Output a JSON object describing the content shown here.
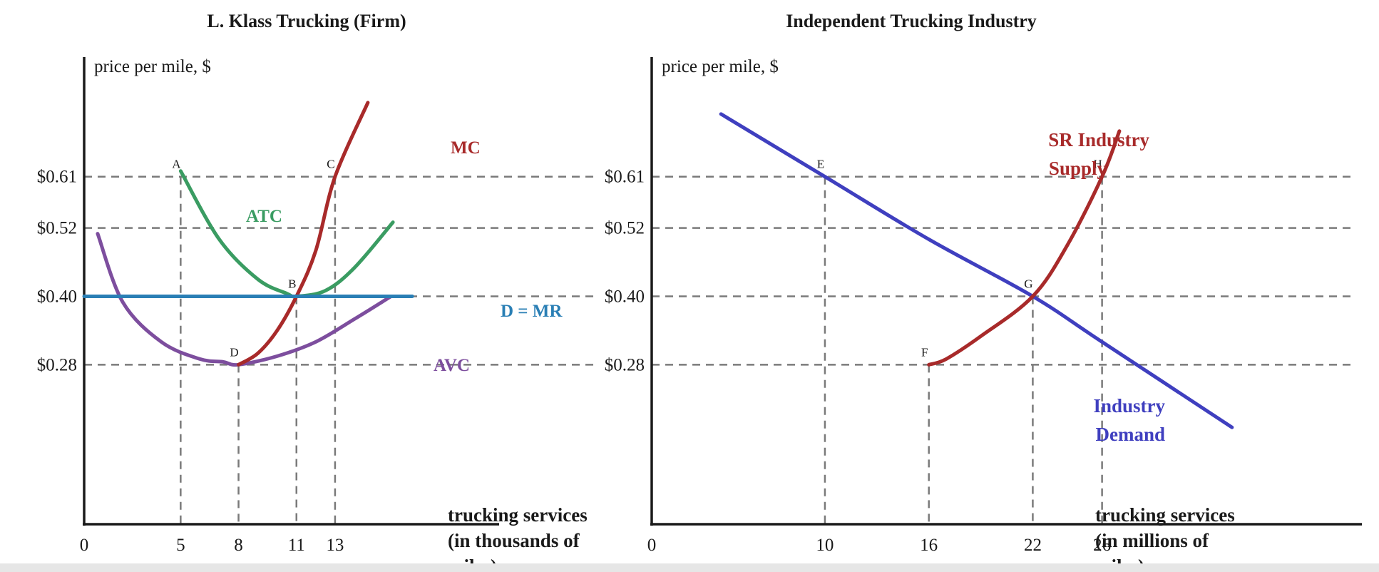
{
  "colors": {
    "atc": "#3a9c62",
    "avc": "#7d4e9e",
    "mc": "#a82a2a",
    "dmr": "#2a7fb5",
    "supply": "#a82a2a",
    "demand": "#3f3fbf",
    "axis": "#1a1a1a",
    "guide": "#7a7a7a"
  },
  "chart_data": [
    {
      "type": "line",
      "title": "L. Klass Trucking (Firm)",
      "ylabel": "price per mile, $",
      "xlabel_lines": [
        "trucking services",
        "(in thousands of",
        "miles)"
      ],
      "xlim": [
        0,
        21.5
      ],
      "ylim": [
        0,
        0.82
      ],
      "x_ticks": [
        "0",
        "5",
        "8",
        "11",
        "13"
      ],
      "x_tick_values": [
        0,
        5,
        8,
        11,
        13
      ],
      "y_ticks": [
        "$0.61",
        "$0.52",
        "$0.40",
        "$0.28"
      ],
      "y_tick_values": [
        0.61,
        0.52,
        0.4,
        0.28
      ],
      "guides": [
        {
          "x": 5,
          "y": 0.61
        },
        {
          "x": 8,
          "y": 0.28
        },
        {
          "x": 11,
          "y": 0.4
        },
        {
          "x": 13,
          "y": 0.61
        }
      ],
      "series": [
        {
          "name": "ATC",
          "color_key": "atc",
          "x": [
            5,
            7,
            9,
            10.5,
            11,
            12.5,
            14,
            16
          ],
          "y": [
            0.62,
            0.5,
            0.43,
            0.405,
            0.4,
            0.41,
            0.45,
            0.53
          ]
        },
        {
          "name": "AVC",
          "color_key": "avc",
          "x": [
            0.7,
            2,
            4,
            6,
            7.2,
            8,
            10,
            12,
            14,
            15.9
          ],
          "y": [
            0.51,
            0.39,
            0.32,
            0.29,
            0.285,
            0.28,
            0.295,
            0.32,
            0.36,
            0.4
          ]
        },
        {
          "name": "MC",
          "color_key": "mc",
          "x": [
            8,
            9,
            10,
            11,
            12,
            13,
            14.7
          ],
          "y": [
            0.28,
            0.3,
            0.34,
            0.4,
            0.48,
            0.61,
            0.74
          ]
        },
        {
          "name": "D = MR",
          "color_key": "dmr",
          "x": [
            0,
            17
          ],
          "y": [
            0.4,
            0.4
          ]
        }
      ],
      "annotations": [
        {
          "text": "A",
          "x": 5,
          "y": 0.61
        },
        {
          "text": "B",
          "x": 11,
          "y": 0.4
        },
        {
          "text": "C",
          "x": 13,
          "y": 0.61
        },
        {
          "text": "D",
          "x": 8,
          "y": 0.28
        }
      ]
    },
    {
      "type": "line",
      "title": "Independent Trucking Industry",
      "ylabel": "price per mile, $",
      "xlabel_lines": [
        "trucking services",
        "(in millions of",
        "miles)"
      ],
      "xlim": [
        0,
        41
      ],
      "ylim": [
        0,
        0.82
      ],
      "x_ticks": [
        "0",
        "10",
        "16",
        "22",
        "26"
      ],
      "x_tick_values": [
        0,
        10,
        16,
        22,
        26
      ],
      "y_ticks": [
        "$0.61",
        "$0.52",
        "$0.40",
        "$0.28"
      ],
      "y_tick_values": [
        0.61,
        0.52,
        0.4,
        0.28
      ],
      "guides": [
        {
          "x": 10,
          "y": 0.61
        },
        {
          "x": 16,
          "y": 0.28
        },
        {
          "x": 22,
          "y": 0.4
        },
        {
          "x": 26,
          "y": 0.61
        }
      ],
      "series": [
        {
          "name": "Industry Demand",
          "color_key": "demand",
          "x": [
            4,
            10,
            16,
            22,
            26,
            33.5
          ],
          "y": [
            0.72,
            0.61,
            0.5,
            0.4,
            0.32,
            0.17
          ]
        },
        {
          "name": "SR Industry Supply",
          "color_key": "supply",
          "x": [
            16,
            17,
            19,
            22,
            24,
            26,
            27
          ],
          "y": [
            0.28,
            0.29,
            0.33,
            0.4,
            0.49,
            0.61,
            0.69
          ]
        }
      ],
      "annotations": [
        {
          "text": "E",
          "x": 10,
          "y": 0.61
        },
        {
          "text": "F",
          "x": 16,
          "y": 0.28
        },
        {
          "text": "G",
          "x": 22,
          "y": 0.4
        },
        {
          "text": "H",
          "x": 26,
          "y": 0.61
        }
      ]
    }
  ]
}
